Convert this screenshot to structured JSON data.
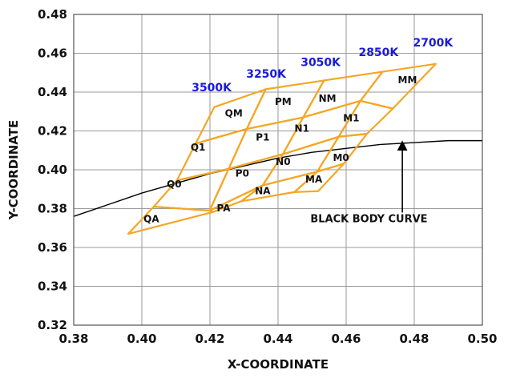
{
  "chart_data": {
    "type": "line",
    "title": "",
    "xlabel": "X-COORDINATE",
    "ylabel": "Y-COORDINATE",
    "xlim": [
      0.38,
      0.5
    ],
    "ylim": [
      0.32,
      0.48
    ],
    "x_ticks": [
      "0.38",
      "0.40",
      "0.42",
      "0.44",
      "0.46",
      "0.48",
      "0.50"
    ],
    "y_ticks": [
      "0.32",
      "0.34",
      "0.36",
      "0.38",
      "0.40",
      "0.42",
      "0.44",
      "0.46",
      "0.48"
    ],
    "grid": true,
    "colors": {
      "bins": "#f5a623",
      "cct_labels": "#1a1adb",
      "curve": "#000000"
    },
    "black_body_curve": {
      "name": "BLACK BODY CURVE",
      "points": [
        [
          0.38,
          0.376
        ],
        [
          0.39,
          0.382
        ],
        [
          0.4,
          0.388
        ],
        [
          0.41,
          0.393
        ],
        [
          0.42,
          0.398
        ],
        [
          0.43,
          0.402
        ],
        [
          0.44,
          0.406
        ],
        [
          0.45,
          0.409
        ],
        [
          0.46,
          0.411
        ],
        [
          0.47,
          0.413
        ],
        [
          0.48,
          0.414
        ],
        [
          0.49,
          0.415
        ],
        [
          0.5,
          0.415
        ]
      ]
    },
    "cct_labels": [
      {
        "text": "3500K",
        "x": 0.4205,
        "y": 0.4405
      },
      {
        "text": "3250K",
        "x": 0.4365,
        "y": 0.4475
      },
      {
        "text": "3050K",
        "x": 0.4525,
        "y": 0.4535
      },
      {
        "text": "2850K",
        "x": 0.4695,
        "y": 0.4585
      },
      {
        "text": "2700K",
        "x": 0.4855,
        "y": 0.4635
      }
    ],
    "bins": [
      {
        "name": "QM",
        "corners": [
          [
            0.4213,
            0.4323
          ],
          [
            0.4364,
            0.4415
          ],
          [
            0.4308,
            0.421
          ],
          [
            0.4158,
            0.4135
          ]
        ]
      },
      {
        "name": "Q1",
        "corners": [
          [
            0.4158,
            0.4135
          ],
          [
            0.4308,
            0.421
          ],
          [
            0.4255,
            0.4005
          ],
          [
            0.4103,
            0.3945
          ]
        ]
      },
      {
        "name": "Q0",
        "corners": [
          [
            0.4103,
            0.3945
          ],
          [
            0.4255,
            0.4005
          ],
          [
            0.4199,
            0.379
          ],
          [
            0.4035,
            0.381
          ]
        ]
      },
      {
        "name": "QA",
        "corners": [
          [
            0.4035,
            0.381
          ],
          [
            0.4199,
            0.379
          ],
          [
            0.421,
            0.3783
          ],
          [
            0.396,
            0.367
          ]
        ]
      },
      {
        "name": "PM",
        "corners": [
          [
            0.4364,
            0.4415
          ],
          [
            0.4535,
            0.446
          ],
          [
            0.4474,
            0.427
          ],
          [
            0.4308,
            0.421
          ]
        ]
      },
      {
        "name": "P1",
        "corners": [
          [
            0.4308,
            0.421
          ],
          [
            0.4474,
            0.427
          ],
          [
            0.4414,
            0.408
          ],
          [
            0.4255,
            0.4005
          ]
        ]
      },
      {
        "name": "P0",
        "corners": [
          [
            0.4255,
            0.4005
          ],
          [
            0.4414,
            0.408
          ],
          [
            0.4355,
            0.392
          ],
          [
            0.4199,
            0.379
          ]
        ]
      },
      {
        "name": "PA",
        "corners": [
          [
            0.4199,
            0.379
          ],
          [
            0.4355,
            0.392
          ],
          [
            0.4292,
            0.3838
          ],
          [
            0.421,
            0.3783
          ]
        ]
      },
      {
        "name": "NM",
        "corners": [
          [
            0.4535,
            0.446
          ],
          [
            0.4707,
            0.4505
          ],
          [
            0.4642,
            0.4355
          ],
          [
            0.4474,
            0.427
          ]
        ]
      },
      {
        "name": "N1",
        "corners": [
          [
            0.4474,
            0.427
          ],
          [
            0.4642,
            0.4355
          ],
          [
            0.4578,
            0.417
          ],
          [
            0.4414,
            0.408
          ]
        ]
      },
      {
        "name": "N0",
        "corners": [
          [
            0.4414,
            0.408
          ],
          [
            0.4578,
            0.417
          ],
          [
            0.4515,
            0.399
          ],
          [
            0.4355,
            0.392
          ]
        ]
      },
      {
        "name": "NA",
        "corners": [
          [
            0.4355,
            0.392
          ],
          [
            0.4515,
            0.399
          ],
          [
            0.4448,
            0.3885
          ],
          [
            0.4292,
            0.3838
          ]
        ]
      },
      {
        "name": "MM",
        "corners": [
          [
            0.4707,
            0.4505
          ],
          [
            0.4863,
            0.4545
          ],
          [
            0.4737,
            0.4315
          ],
          [
            0.4642,
            0.4355
          ]
        ]
      },
      {
        "name": "M1",
        "corners": [
          [
            0.4642,
            0.4355
          ],
          [
            0.4737,
            0.4315
          ],
          [
            0.4661,
            0.4185
          ],
          [
            0.4578,
            0.417
          ]
        ]
      },
      {
        "name": "M0",
        "corners": [
          [
            0.4578,
            0.417
          ],
          [
            0.4661,
            0.4185
          ],
          [
            0.4593,
            0.4031
          ],
          [
            0.4515,
            0.399
          ]
        ]
      },
      {
        "name": "MA",
        "corners": [
          [
            0.4515,
            0.399
          ],
          [
            0.4593,
            0.4031
          ],
          [
            0.4518,
            0.389
          ],
          [
            0.4448,
            0.3885
          ]
        ]
      }
    ],
    "bin_labels": [
      {
        "text": "QM",
        "x": 0.427,
        "y": 0.4275
      },
      {
        "text": "Q1",
        "x": 0.4165,
        "y": 0.41
      },
      {
        "text": "Q0",
        "x": 0.4095,
        "y": 0.391
      },
      {
        "text": "QA",
        "x": 0.4028,
        "y": 0.373
      },
      {
        "text": "PM",
        "x": 0.4415,
        "y": 0.4335
      },
      {
        "text": "P1",
        "x": 0.4355,
        "y": 0.415
      },
      {
        "text": "P0",
        "x": 0.4295,
        "y": 0.3965
      },
      {
        "text": "PA",
        "x": 0.424,
        "y": 0.3785
      },
      {
        "text": "NM",
        "x": 0.4545,
        "y": 0.435
      },
      {
        "text": "N1",
        "x": 0.447,
        "y": 0.4195
      },
      {
        "text": "N0",
        "x": 0.4415,
        "y": 0.4025
      },
      {
        "text": "NA",
        "x": 0.4355,
        "y": 0.3875
      },
      {
        "text": "MM",
        "x": 0.478,
        "y": 0.4445
      },
      {
        "text": "M1",
        "x": 0.4615,
        "y": 0.425
      },
      {
        "text": "M0",
        "x": 0.4585,
        "y": 0.4045
      },
      {
        "text": "MA",
        "x": 0.4505,
        "y": 0.3935
      }
    ],
    "annotation": {
      "text": "BLACK BODY CURVE",
      "text_at": [
        0.4495,
        0.373
      ],
      "arrow_from": [
        0.4765,
        0.378
      ],
      "arrow_to": [
        0.4765,
        0.4125
      ]
    }
  }
}
